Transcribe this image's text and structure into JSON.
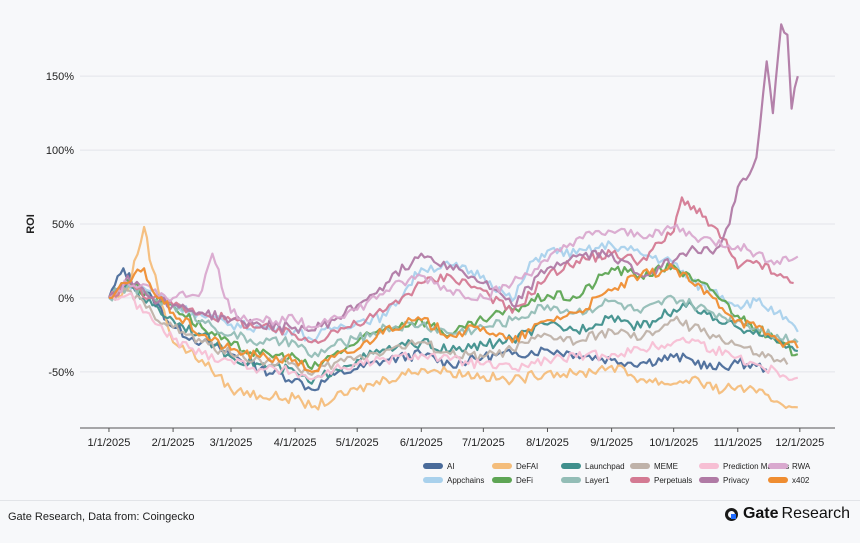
{
  "chart_data": {
    "type": "line",
    "ylabel": "ROI",
    "xlabel": "",
    "ylim": [
      -88,
      188
    ],
    "xlim": [
      "2024-12-18",
      "2025-12-18"
    ],
    "y_ticks": [
      -50,
      0,
      50,
      100,
      150
    ],
    "y_tick_labels": [
      "-50%",
      "0%",
      "50%",
      "100%",
      "150%"
    ],
    "x_ticks": [
      "2025-01-01",
      "2025-02-01",
      "2025-03-01",
      "2025-04-01",
      "2025-05-01",
      "2025-06-01",
      "2025-07-01",
      "2025-08-01",
      "2025-09-01",
      "2025-10-01",
      "2025-11-01",
      "2025-12-01"
    ],
    "x_tick_labels": [
      "1/1/2025",
      "2/1/2025",
      "3/1/2025",
      "4/1/2025",
      "5/1/2025",
      "6/1/2025",
      "7/1/2025",
      "8/1/2025",
      "9/1/2025",
      "10/1/2025",
      "11/1/2025",
      "12/1/2025"
    ],
    "grid": "horizontal",
    "legend_position": "bottom-right",
    "series": [
      {
        "name": "AI",
        "color": "#4a6b9a",
        "end": "2025-11-15",
        "dates": [
          "2025-01-01",
          "2025-01-08",
          "2025-01-15",
          "2025-01-22",
          "2025-02-01",
          "2025-02-15",
          "2025-03-01",
          "2025-03-15",
          "2025-04-01",
          "2025-04-09",
          "2025-04-20",
          "2025-05-01",
          "2025-05-15",
          "2025-06-01",
          "2025-06-15",
          "2025-07-01",
          "2025-07-15",
          "2025-08-01",
          "2025-08-15",
          "2025-09-01",
          "2025-09-15",
          "2025-10-01",
          "2025-10-10",
          "2025-10-20",
          "2025-11-01",
          "2025-11-10",
          "2025-11-15"
        ],
        "values": [
          0,
          20,
          5,
          0,
          -20,
          -30,
          -38,
          -48,
          -55,
          -62,
          -52,
          -48,
          -42,
          -38,
          -45,
          -40,
          -38,
          -35,
          -38,
          -42,
          -44,
          -40,
          -42,
          -48,
          -44,
          -46,
          -48
        ]
      },
      {
        "name": "Appchains",
        "color": "#a9d1ec",
        "end": "2025-11-30",
        "dates": [
          "2025-01-01",
          "2025-01-10",
          "2025-01-22",
          "2025-02-01",
          "2025-02-15",
          "2025-03-01",
          "2025-03-15",
          "2025-04-01",
          "2025-04-09",
          "2025-04-20",
          "2025-05-01",
          "2025-05-15",
          "2025-06-01",
          "2025-06-15",
          "2025-07-01",
          "2025-07-15",
          "2025-07-25",
          "2025-08-01",
          "2025-08-15",
          "2025-09-01",
          "2025-09-15",
          "2025-10-01",
          "2025-10-10",
          "2025-10-20",
          "2025-11-01",
          "2025-11-10",
          "2025-11-20",
          "2025-11-30"
        ],
        "values": [
          0,
          10,
          5,
          -5,
          -12,
          -18,
          -20,
          -22,
          -28,
          -20,
          -16,
          -12,
          20,
          22,
          15,
          -2,
          25,
          32,
          30,
          36,
          30,
          24,
          10,
          5,
          -5,
          -2,
          -10,
          -23
        ]
      },
      {
        "name": "DeFAI",
        "color": "#f4bd7b",
        "end": "2025-11-30",
        "dates": [
          "2025-01-01",
          "2025-01-10",
          "2025-01-18",
          "2025-01-22",
          "2025-02-01",
          "2025-02-15",
          "2025-03-01",
          "2025-03-15",
          "2025-04-01",
          "2025-04-09",
          "2025-04-20",
          "2025-05-01",
          "2025-05-15",
          "2025-06-01",
          "2025-06-15",
          "2025-07-01",
          "2025-07-15",
          "2025-08-01",
          "2025-08-15",
          "2025-09-01",
          "2025-09-15",
          "2025-10-01",
          "2025-10-10",
          "2025-10-20",
          "2025-11-01",
          "2025-11-10",
          "2025-11-20",
          "2025-11-30"
        ],
        "values": [
          0,
          5,
          48,
          20,
          -30,
          -42,
          -62,
          -66,
          -68,
          -74,
          -68,
          -62,
          -55,
          -48,
          -50,
          -53,
          -56,
          -50,
          -52,
          -46,
          -55,
          -58,
          -54,
          -62,
          -60,
          -64,
          -70,
          -74
        ]
      },
      {
        "name": "DeFi",
        "color": "#5ea554",
        "end": "2025-11-30",
        "dates": [
          "2025-01-01",
          "2025-01-10",
          "2025-01-22",
          "2025-02-01",
          "2025-02-15",
          "2025-03-01",
          "2025-03-15",
          "2025-04-01",
          "2025-04-09",
          "2025-04-20",
          "2025-05-01",
          "2025-05-15",
          "2025-06-01",
          "2025-06-15",
          "2025-07-01",
          "2025-07-15",
          "2025-08-01",
          "2025-08-15",
          "2025-09-01",
          "2025-09-15",
          "2025-10-01",
          "2025-10-10",
          "2025-10-20",
          "2025-11-01",
          "2025-11-10",
          "2025-11-20",
          "2025-11-30"
        ],
        "values": [
          0,
          12,
          0,
          -5,
          -20,
          -32,
          -38,
          -40,
          -48,
          -38,
          -30,
          -20,
          -15,
          -25,
          -15,
          -8,
          2,
          0,
          20,
          15,
          22,
          12,
          5,
          -12,
          -20,
          -30,
          -38
        ]
      },
      {
        "name": "Launchpad",
        "color": "#3f8f8c",
        "end": "2025-11-30",
        "dates": [
          "2025-01-01",
          "2025-01-10",
          "2025-01-22",
          "2025-02-01",
          "2025-02-15",
          "2025-03-01",
          "2025-03-15",
          "2025-04-01",
          "2025-04-09",
          "2025-04-20",
          "2025-05-01",
          "2025-05-15",
          "2025-06-01",
          "2025-06-15",
          "2025-07-01",
          "2025-07-15",
          "2025-08-01",
          "2025-08-15",
          "2025-09-01",
          "2025-09-15",
          "2025-10-01",
          "2025-10-10",
          "2025-10-20",
          "2025-11-01",
          "2025-11-10",
          "2025-11-20",
          "2025-11-30"
        ],
        "values": [
          0,
          10,
          -5,
          -15,
          -25,
          -40,
          -45,
          -50,
          -58,
          -48,
          -42,
          -35,
          -30,
          -36,
          -32,
          -28,
          -18,
          -22,
          -12,
          -20,
          -8,
          -5,
          -15,
          -20,
          -22,
          -30,
          -36
        ]
      },
      {
        "name": "Layer1",
        "color": "#93bdb6",
        "end": "2025-11-30",
        "dates": [
          "2025-01-01",
          "2025-01-10",
          "2025-01-22",
          "2025-02-01",
          "2025-02-15",
          "2025-03-01",
          "2025-03-15",
          "2025-04-01",
          "2025-04-09",
          "2025-04-20",
          "2025-05-01",
          "2025-05-15",
          "2025-06-01",
          "2025-06-15",
          "2025-07-01",
          "2025-07-15",
          "2025-08-01",
          "2025-08-15",
          "2025-09-01",
          "2025-09-15",
          "2025-10-01",
          "2025-10-10",
          "2025-10-20",
          "2025-11-01",
          "2025-11-10",
          "2025-11-20",
          "2025-11-30"
        ],
        "values": [
          0,
          8,
          0,
          -5,
          -15,
          -25,
          -30,
          -30,
          -40,
          -32,
          -28,
          -20,
          -18,
          -24,
          -20,
          -15,
          -5,
          -10,
          -2,
          -10,
          0,
          -5,
          -10,
          -15,
          -20,
          -25,
          -30
        ]
      },
      {
        "name": "MEME",
        "color": "#bfb2a9",
        "end": "2025-11-25",
        "dates": [
          "2025-01-01",
          "2025-01-10",
          "2025-01-22",
          "2025-02-01",
          "2025-02-15",
          "2025-03-01",
          "2025-03-15",
          "2025-04-01",
          "2025-04-09",
          "2025-04-20",
          "2025-05-01",
          "2025-05-15",
          "2025-06-01",
          "2025-06-15",
          "2025-07-01",
          "2025-07-15",
          "2025-08-01",
          "2025-08-15",
          "2025-09-01",
          "2025-09-15",
          "2025-10-01",
          "2025-10-10",
          "2025-10-20",
          "2025-11-01",
          "2025-11-10",
          "2025-11-20",
          "2025-11-25"
        ],
        "values": [
          0,
          5,
          -10,
          -20,
          -30,
          -38,
          -42,
          -45,
          -52,
          -44,
          -40,
          -35,
          -30,
          -38,
          -40,
          -35,
          -25,
          -30,
          -22,
          -28,
          -15,
          -20,
          -25,
          -32,
          -38,
          -42,
          -45
        ]
      },
      {
        "name": "Perpetuals",
        "color": "#d47a93",
        "end": "2025-11-28",
        "dates": [
          "2025-01-01",
          "2025-01-10",
          "2025-01-22",
          "2025-02-01",
          "2025-02-15",
          "2025-03-01",
          "2025-03-15",
          "2025-04-01",
          "2025-04-09",
          "2025-04-20",
          "2025-05-01",
          "2025-05-15",
          "2025-06-01",
          "2025-06-15",
          "2025-07-01",
          "2025-07-15",
          "2025-08-01",
          "2025-08-15",
          "2025-09-01",
          "2025-09-15",
          "2025-10-01",
          "2025-10-05",
          "2025-10-15",
          "2025-10-25",
          "2025-11-01",
          "2025-11-10",
          "2025-11-20",
          "2025-11-28"
        ],
        "values": [
          0,
          10,
          0,
          -5,
          -10,
          -15,
          -20,
          -25,
          -30,
          -22,
          -18,
          -8,
          10,
          15,
          5,
          -10,
          15,
          25,
          30,
          25,
          45,
          68,
          55,
          40,
          20,
          25,
          15,
          10
        ]
      },
      {
        "name": "Prediction Markets",
        "color": "#f7bfd4",
        "end": "2025-11-30",
        "dates": [
          "2025-01-01",
          "2025-01-10",
          "2025-01-22",
          "2025-02-01",
          "2025-02-15",
          "2025-03-01",
          "2025-03-15",
          "2025-04-01",
          "2025-04-09",
          "2025-04-20",
          "2025-05-01",
          "2025-05-15",
          "2025-06-01",
          "2025-06-15",
          "2025-07-01",
          "2025-07-15",
          "2025-08-01",
          "2025-08-15",
          "2025-09-01",
          "2025-09-15",
          "2025-10-01",
          "2025-10-10",
          "2025-10-20",
          "2025-11-01",
          "2025-11-10",
          "2025-11-20",
          "2025-11-30"
        ],
        "values": [
          0,
          2,
          -15,
          -28,
          -38,
          -42,
          -48,
          -50,
          -55,
          -48,
          -45,
          -42,
          -38,
          -42,
          -45,
          -48,
          -42,
          -40,
          -38,
          -35,
          -30,
          -28,
          -35,
          -40,
          -45,
          -50,
          -54
        ]
      },
      {
        "name": "Privacy",
        "color": "#b07aa5",
        "end": "2025-11-30",
        "dates": [
          "2025-01-01",
          "2025-01-10",
          "2025-01-22",
          "2025-02-01",
          "2025-02-15",
          "2025-03-01",
          "2025-03-15",
          "2025-04-01",
          "2025-04-09",
          "2025-04-20",
          "2025-05-01",
          "2025-05-15",
          "2025-06-01",
          "2025-06-15",
          "2025-07-01",
          "2025-07-15",
          "2025-08-01",
          "2025-08-15",
          "2025-09-01",
          "2025-09-15",
          "2025-10-01",
          "2025-10-10",
          "2025-10-20",
          "2025-10-28",
          "2025-11-01",
          "2025-11-05",
          "2025-11-10",
          "2025-11-15",
          "2025-11-18",
          "2025-11-22",
          "2025-11-25",
          "2025-11-27",
          "2025-11-30"
        ],
        "values": [
          0,
          15,
          0,
          -5,
          -10,
          -15,
          -18,
          -20,
          -22,
          -15,
          -5,
          10,
          30,
          22,
          10,
          -5,
          20,
          28,
          30,
          15,
          25,
          35,
          30,
          50,
          75,
          80,
          95,
          160,
          125,
          185,
          178,
          128,
          150
        ]
      },
      {
        "name": "RWA",
        "color": "#d9a9cf",
        "end": "2025-11-30",
        "dates": [
          "2025-01-01",
          "2025-01-10",
          "2025-01-22",
          "2025-02-01",
          "2025-02-15",
          "2025-02-20",
          "2025-03-01",
          "2025-03-15",
          "2025-04-01",
          "2025-04-09",
          "2025-04-20",
          "2025-05-01",
          "2025-05-15",
          "2025-06-01",
          "2025-06-15",
          "2025-07-01",
          "2025-07-15",
          "2025-08-01",
          "2025-08-15",
          "2025-09-01",
          "2025-09-15",
          "2025-10-01",
          "2025-10-10",
          "2025-10-20",
          "2025-11-01",
          "2025-11-10",
          "2025-11-20",
          "2025-11-30"
        ],
        "values": [
          0,
          10,
          5,
          0,
          5,
          30,
          -10,
          -15,
          -15,
          -20,
          -12,
          -8,
          5,
          15,
          5,
          0,
          10,
          25,
          40,
          45,
          42,
          48,
          42,
          38,
          35,
          30,
          25,
          28
        ]
      },
      {
        "name": "x402",
        "color": "#ef8d31",
        "end": "2025-11-30",
        "dates": [
          "2025-01-01",
          "2025-01-10",
          "2025-01-18",
          "2025-01-22",
          "2025-02-01",
          "2025-02-15",
          "2025-03-01",
          "2025-03-15",
          "2025-04-01",
          "2025-04-09",
          "2025-04-20",
          "2025-05-01",
          "2025-05-15",
          "2025-06-01",
          "2025-06-15",
          "2025-07-01",
          "2025-07-15",
          "2025-08-01",
          "2025-08-15",
          "2025-09-01",
          "2025-09-15",
          "2025-10-01",
          "2025-10-10",
          "2025-10-20",
          "2025-11-01",
          "2025-11-10",
          "2025-11-20",
          "2025-11-30"
        ],
        "values": [
          0,
          10,
          20,
          5,
          -10,
          -25,
          -35,
          -40,
          -42,
          -50,
          -40,
          -35,
          -20,
          -15,
          -25,
          -20,
          -30,
          -15,
          -10,
          5,
          15,
          20,
          10,
          0,
          -15,
          -20,
          -28,
          -34
        ]
      }
    ]
  },
  "footer": {
    "source": "Gate Research, Data from: Coingecko",
    "brand_logo": "Gate",
    "brand_rest": "Research"
  }
}
